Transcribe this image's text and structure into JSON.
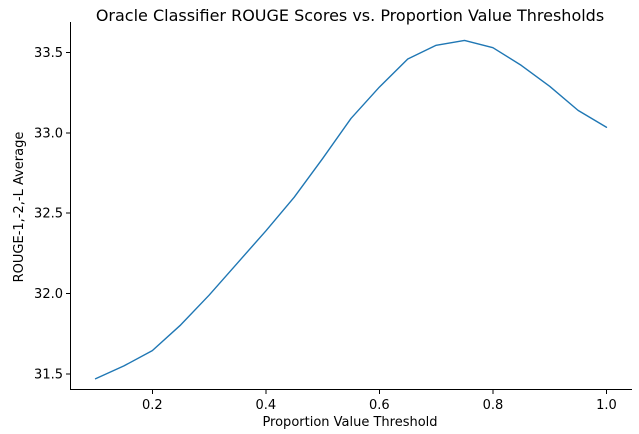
{
  "chart_data": {
    "type": "line",
    "title": "Oracle Classifier ROUGE Scores vs. Proportion Value Thresholds",
    "xlabel": "Proportion Value Threshold",
    "ylabel": "ROUGE-1,-2,-L Average",
    "xlim": [
      0.055,
      1.045
    ],
    "ylim": [
      31.4,
      33.69
    ],
    "xticks": [
      0.2,
      0.4,
      0.6,
      0.8,
      1.0
    ],
    "xtick_labels": [
      "0.2",
      "0.4",
      "0.6",
      "0.8",
      "1.0"
    ],
    "yticks": [
      31.5,
      32.0,
      32.5,
      33.0,
      33.5
    ],
    "ytick_labels": [
      "31.5",
      "32.0",
      "32.5",
      "33.0",
      "33.5"
    ],
    "grid": false,
    "series": [
      {
        "color": "#1f77b4",
        "x": [
          0.1,
          0.15,
          0.2,
          0.25,
          0.3,
          0.35,
          0.4,
          0.45,
          0.5,
          0.55,
          0.6,
          0.65,
          0.7,
          0.75,
          0.8,
          0.85,
          0.9,
          0.95,
          1.0
        ],
        "y": [
          31.47,
          31.55,
          31.645,
          31.805,
          31.99,
          32.19,
          32.39,
          32.6,
          32.84,
          33.09,
          33.285,
          33.46,
          33.545,
          33.575,
          33.53,
          33.42,
          33.29,
          33.14,
          33.035
        ]
      }
    ]
  }
}
